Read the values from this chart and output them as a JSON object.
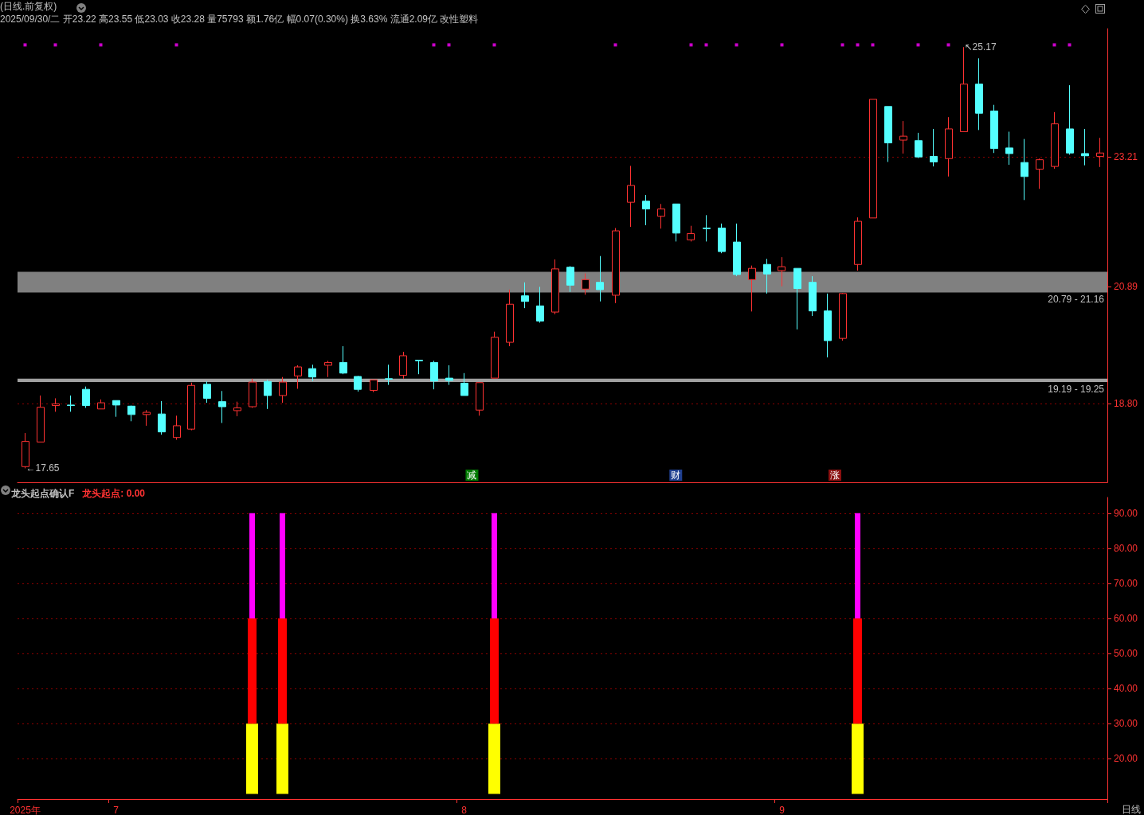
{
  "chart_data": [
    {
      "type": "candlestick",
      "title": "(日线.前复权)",
      "subtitle": "2025/09/30/二 开23.22 高23.55 低23.03 收23.28 量75793 额1.76亿 幅0.07(0.30%) 换3.63% 流通2.09亿 改性塑料",
      "categories": [
        null,
        null,
        null,
        null,
        null,
        null,
        null,
        null,
        null,
        null,
        null,
        null,
        null,
        null,
        null,
        null,
        null,
        null,
        null,
        null,
        null,
        null,
        null,
        null,
        null,
        null,
        null,
        null,
        null,
        null,
        null,
        null,
        null,
        null,
        null,
        null,
        null,
        null,
        null,
        null,
        null,
        null,
        null,
        null,
        null,
        null,
        null,
        null,
        null,
        null,
        null,
        null,
        null,
        null,
        null,
        null,
        null,
        null,
        null,
        null,
        null,
        null,
        null,
        null,
        null,
        null,
        null,
        null,
        null,
        null,
        null,
        null
      ],
      "ohlc": [
        [
          17.68,
          18.28,
          17.65,
          18.13
        ],
        [
          18.12,
          18.95,
          18.12,
          18.74
        ],
        [
          18.77,
          18.9,
          18.66,
          18.8
        ],
        [
          18.78,
          18.95,
          18.66,
          18.77
        ],
        [
          19.06,
          19.11,
          18.73,
          18.77
        ],
        [
          18.71,
          18.88,
          18.71,
          18.82
        ],
        [
          18.86,
          18.86,
          18.57,
          18.78
        ],
        [
          18.76,
          18.77,
          18.49,
          18.61
        ],
        [
          18.61,
          18.69,
          18.41,
          18.65
        ],
        [
          18.62,
          18.85,
          18.25,
          18.3
        ],
        [
          18.2,
          18.59,
          18.16,
          18.41
        ],
        [
          18.35,
          19.18,
          18.33,
          19.13
        ],
        [
          19.15,
          19.2,
          18.82,
          18.9
        ],
        [
          18.84,
          19.03,
          18.46,
          18.75
        ],
        [
          18.68,
          18.84,
          18.58,
          18.73
        ],
        [
          18.75,
          19.25,
          18.73,
          19.19
        ],
        [
          19.2,
          19.23,
          18.71,
          18.95
        ],
        [
          18.95,
          19.28,
          18.82,
          19.19
        ],
        [
          19.3,
          19.49,
          19.07,
          19.46
        ],
        [
          19.43,
          19.5,
          19.21,
          19.28
        ],
        [
          19.49,
          19.57,
          19.28,
          19.54
        ],
        [
          19.54,
          19.83,
          19.33,
          19.35
        ],
        [
          19.29,
          19.3,
          19.02,
          19.06
        ],
        [
          19.04,
          19.23,
          19.01,
          19.23
        ],
        [
          19.25,
          19.5,
          19.14,
          19.24
        ],
        [
          19.31,
          19.73,
          19.25,
          19.66
        ],
        [
          19.58,
          19.58,
          19.33,
          19.57
        ],
        [
          19.54,
          19.57,
          19.06,
          19.21
        ],
        [
          19.26,
          19.49,
          19.14,
          19.22
        ],
        [
          19.17,
          19.35,
          18.95,
          18.95
        ],
        [
          18.69,
          19.18,
          18.59,
          19.18
        ],
        [
          19.26,
          20.09,
          19.26,
          19.99
        ],
        [
          19.9,
          20.84,
          19.83,
          20.58
        ],
        [
          20.73,
          20.97,
          20.51,
          20.63
        ],
        [
          20.55,
          20.89,
          20.25,
          20.28
        ],
        [
          20.44,
          21.38,
          20.4,
          21.21
        ],
        [
          21.24,
          21.26,
          20.8,
          20.92
        ],
        [
          20.85,
          21.13,
          20.75,
          21.02
        ],
        [
          20.97,
          21.44,
          20.63,
          20.84
        ],
        [
          20.74,
          21.94,
          20.6,
          21.89
        ],
        [
          22.4,
          23.05,
          21.96,
          22.7
        ],
        [
          22.42,
          22.53,
          21.99,
          22.28
        ],
        [
          22.15,
          22.37,
          21.93,
          22.28
        ],
        [
          22.37,
          22.37,
          21.7,
          21.85
        ],
        [
          21.73,
          21.98,
          21.7,
          21.84
        ],
        [
          21.94,
          22.17,
          21.7,
          21.93
        ],
        [
          21.94,
          22.02,
          21.49,
          21.52
        ],
        [
          21.69,
          22.02,
          21.08,
          21.11
        ],
        [
          21.02,
          21.27,
          20.45,
          21.22
        ],
        [
          21.29,
          21.39,
          20.77,
          21.12
        ],
        [
          21.18,
          21.42,
          20.9,
          21.25
        ],
        [
          21.22,
          21.22,
          20.13,
          20.86
        ],
        [
          20.97,
          21.08,
          20.37,
          20.46
        ],
        [
          20.46,
          20.77,
          19.63,
          19.93
        ],
        [
          19.97,
          20.78,
          19.93,
          20.77
        ],
        [
          21.29,
          22.13,
          21.18,
          22.06
        ],
        [
          22.12,
          24.24,
          22.12,
          24.24
        ],
        [
          24.11,
          24.11,
          23.12,
          23.46
        ],
        [
          23.51,
          23.85,
          23.27,
          23.58
        ],
        [
          23.5,
          23.64,
          23.19,
          23.21
        ],
        [
          23.22,
          23.71,
          23.04,
          23.12
        ],
        [
          23.18,
          23.92,
          22.86,
          23.71
        ],
        [
          23.66,
          25.17,
          23.66,
          24.51
        ],
        [
          24.51,
          24.97,
          23.69,
          23.99
        ],
        [
          24.03,
          24.14,
          23.28,
          23.36
        ],
        [
          23.37,
          23.66,
          23.07,
          23.27
        ],
        [
          23.11,
          23.53,
          22.44,
          22.86
        ],
        [
          22.99,
          23.18,
          22.64,
          23.16
        ],
        [
          23.04,
          24.01,
          23.0,
          23.8
        ],
        [
          23.71,
          24.49,
          23.25,
          23.28
        ],
        [
          23.27,
          23.71,
          23.06,
          23.23
        ],
        [
          23.22,
          23.55,
          23.03,
          23.28
        ]
      ],
      "series": [
        {
          "type": "scatter",
          "color": "#ff00ff",
          "marker": "square",
          "values": [
            25.21,
            null,
            25.21,
            null,
            null,
            25.21,
            null,
            null,
            null,
            null,
            25.21,
            null,
            null,
            null,
            null,
            null,
            null,
            null,
            null,
            null,
            null,
            null,
            null,
            null,
            null,
            null,
            null,
            25.21,
            25.21,
            null,
            null,
            25.21,
            null,
            null,
            null,
            null,
            null,
            null,
            null,
            25.21,
            null,
            null,
            null,
            null,
            25.21,
            25.21,
            null,
            25.21,
            null,
            null,
            25.21,
            null,
            null,
            null,
            25.21,
            25.21,
            25.21,
            null,
            null,
            25.21,
            null,
            25.21,
            null,
            null,
            null,
            null,
            null,
            null,
            25.21,
            25.21,
            null,
            null
          ]
        }
      ],
      "ylim": [
        17.4,
        25.5
      ],
      "yticks": [
        {
          "value": 18.8,
          "label": "18.80"
        },
        {
          "value": 20.89,
          "label": "20.89"
        },
        {
          "value": 23.21,
          "label": "23.21"
        }
      ],
      "grid": "y",
      "tick_labels": "y",
      "bands": [
        {
          "axis": "y",
          "from": 19.19,
          "to": 19.25,
          "label": "19.19 - 19.25",
          "color": "#a0a0a0"
        },
        {
          "axis": "y",
          "from": 20.79,
          "to": 21.16,
          "label": "20.79 - 21.16",
          "color": "#808080"
        }
      ],
      "annotations": [
        "↖25.17",
        "←17.65",
        "减",
        "财",
        "涨"
      ]
    },
    {
      "type": "bar",
      "title": "龙头起点确认F",
      "subtitle": "龙头起点: 0.00",
      "categories": [
        "2025年",
        null,
        null,
        null,
        null,
        null,
        "7",
        null,
        null,
        null,
        null,
        null,
        null,
        null,
        null,
        null,
        null,
        null,
        null,
        null,
        null,
        null,
        null,
        null,
        null,
        null,
        null,
        null,
        null,
        "8",
        null,
        null,
        null,
        null,
        null,
        null,
        null,
        null,
        null,
        null,
        null,
        null,
        null,
        null,
        null,
        null,
        null,
        null,
        null,
        null,
        "9",
        null,
        null,
        null,
        null,
        null,
        null,
        null,
        null,
        null,
        null,
        null,
        null,
        null,
        null,
        null,
        null,
        null,
        null,
        null,
        null,
        null
      ],
      "series": [
        {
          "color": "#ffff00",
          "base": [
            null,
            null,
            null,
            null,
            null,
            null,
            null,
            null,
            null,
            null,
            null,
            null,
            null,
            null,
            null,
            10,
            null,
            10,
            null,
            null,
            null,
            null,
            null,
            null,
            null,
            null,
            null,
            null,
            null,
            null,
            null,
            10,
            null,
            null,
            null,
            null,
            null,
            null,
            null,
            null,
            null,
            null,
            null,
            null,
            null,
            null,
            null,
            null,
            null,
            null,
            null,
            null,
            null,
            null,
            null,
            10,
            null,
            null,
            null,
            null,
            null,
            null,
            null,
            null,
            null,
            null,
            null,
            null,
            null,
            null,
            null,
            null
          ],
          "values": [
            null,
            null,
            null,
            null,
            null,
            null,
            null,
            null,
            null,
            null,
            null,
            null,
            null,
            null,
            null,
            20,
            null,
            20,
            null,
            null,
            null,
            null,
            null,
            null,
            null,
            null,
            null,
            null,
            null,
            null,
            null,
            20,
            null,
            null,
            null,
            null,
            null,
            null,
            null,
            null,
            null,
            null,
            null,
            null,
            null,
            null,
            null,
            null,
            null,
            null,
            null,
            null,
            null,
            null,
            null,
            20,
            null,
            null,
            null,
            null,
            null,
            null,
            null,
            null,
            null,
            null,
            null,
            null,
            null,
            null,
            null,
            null
          ]
        },
        {
          "color": "#ff0000",
          "base": [
            null,
            null,
            null,
            null,
            null,
            null,
            null,
            null,
            null,
            null,
            null,
            null,
            null,
            null,
            null,
            30,
            null,
            30,
            null,
            null,
            null,
            null,
            null,
            null,
            null,
            null,
            null,
            null,
            null,
            null,
            null,
            30,
            null,
            null,
            null,
            null,
            null,
            null,
            null,
            null,
            null,
            null,
            null,
            null,
            null,
            null,
            null,
            null,
            null,
            null,
            null,
            null,
            null,
            null,
            null,
            30,
            null,
            null,
            null,
            null,
            null,
            null,
            null,
            null,
            null,
            null,
            null,
            null,
            null,
            null,
            null,
            null
          ],
          "values": [
            null,
            null,
            null,
            null,
            null,
            null,
            null,
            null,
            null,
            null,
            null,
            null,
            null,
            null,
            null,
            30,
            null,
            30,
            null,
            null,
            null,
            null,
            null,
            null,
            null,
            null,
            null,
            null,
            null,
            null,
            null,
            30,
            null,
            null,
            null,
            null,
            null,
            null,
            null,
            null,
            null,
            null,
            null,
            null,
            null,
            null,
            null,
            null,
            null,
            null,
            null,
            null,
            null,
            null,
            null,
            30,
            null,
            null,
            null,
            null,
            null,
            null,
            null,
            null,
            null,
            null,
            null,
            null,
            null,
            null,
            null,
            null
          ]
        },
        {
          "color": "#ff00ff",
          "base": [
            null,
            null,
            null,
            null,
            null,
            null,
            null,
            null,
            null,
            null,
            null,
            null,
            null,
            null,
            null,
            60,
            null,
            60,
            null,
            null,
            null,
            null,
            null,
            null,
            null,
            null,
            null,
            null,
            null,
            null,
            null,
            60,
            null,
            null,
            null,
            null,
            null,
            null,
            null,
            null,
            null,
            null,
            null,
            null,
            null,
            null,
            null,
            null,
            null,
            null,
            null,
            null,
            null,
            null,
            null,
            60,
            null,
            null,
            null,
            null,
            null,
            null,
            null,
            null,
            null,
            null,
            null,
            null,
            null,
            null,
            null,
            null
          ],
          "values": [
            null,
            null,
            null,
            null,
            null,
            null,
            null,
            null,
            null,
            null,
            null,
            null,
            null,
            null,
            null,
            30,
            null,
            30,
            null,
            null,
            null,
            null,
            null,
            null,
            null,
            null,
            null,
            null,
            null,
            null,
            null,
            30,
            null,
            null,
            null,
            null,
            null,
            null,
            null,
            null,
            null,
            null,
            null,
            null,
            null,
            null,
            null,
            null,
            null,
            null,
            null,
            null,
            null,
            null,
            null,
            30,
            null,
            null,
            null,
            null,
            null,
            null,
            null,
            null,
            null,
            null,
            null,
            null,
            null,
            null,
            null,
            null
          ]
        }
      ],
      "ylim": [
        8.5,
        94.5
      ],
      "yticks": [
        {
          "value": 20,
          "label": "20.00"
        },
        {
          "value": 30,
          "label": "30.00"
        },
        {
          "value": 40,
          "label": "40.00"
        },
        {
          "value": 50,
          "label": "50.00"
        },
        {
          "value": 60,
          "label": "60.00"
        },
        {
          "value": 70,
          "label": "70.00"
        },
        {
          "value": 80,
          "label": "80.00"
        },
        {
          "value": 90,
          "label": "90.00"
        }
      ],
      "grid": "y",
      "annotations": [
        "日线"
      ]
    }
  ]
}
